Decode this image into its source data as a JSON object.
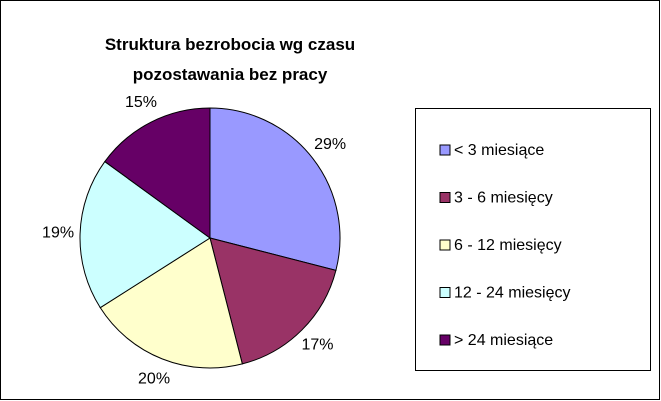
{
  "chart_data": {
    "type": "pie",
    "title": "Struktura bezrobocia wg czasu pozostawania bez pracy",
    "categories": [
      "< 3 miesiące",
      "3 - 6 miesięcy",
      "6 - 12 miesięcy",
      "12 - 24 miesięcy",
      "> 24 miesiące"
    ],
    "values": [
      29,
      17,
      20,
      19,
      15
    ],
    "value_labels": [
      "29%",
      "17%",
      "20%",
      "19%",
      "15%"
    ],
    "colors": [
      "#9999ff",
      "#993366",
      "#ffffcc",
      "#ccffff",
      "#660066"
    ],
    "legend": "right"
  }
}
